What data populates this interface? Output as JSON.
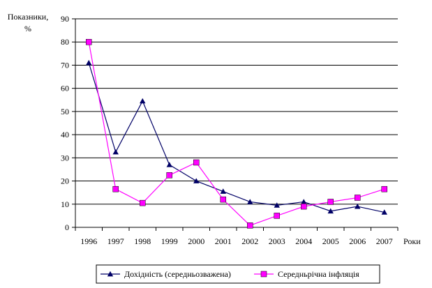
{
  "chart_data": {
    "type": "line",
    "title": "",
    "ylabel": [
      "Показники,",
      "%"
    ],
    "xlabel": "Роки",
    "ylim": [
      0,
      90
    ],
    "ytick_step": 10,
    "grid": true,
    "legend_position": "bottom",
    "categories": [
      "1996",
      "1997",
      "1998",
      "1999",
      "2000",
      "2001",
      "2002",
      "2003",
      "2004",
      "2005",
      "2006",
      "2007"
    ],
    "series": [
      {
        "name": "Дохідність (середньозважена)",
        "color": "#000066",
        "marker": "triangle",
        "values": [
          71,
          32.5,
          54.5,
          27,
          20,
          15.5,
          11,
          9.5,
          11,
          7,
          9,
          6.5
        ]
      },
      {
        "name": "Середньрічна інфляція",
        "color": "#ff00ff",
        "marker": "square",
        "values": [
          80,
          16.5,
          10.5,
          22.5,
          28,
          12,
          0.8,
          5,
          9,
          11,
          12.8,
          16.5
        ]
      }
    ]
  }
}
